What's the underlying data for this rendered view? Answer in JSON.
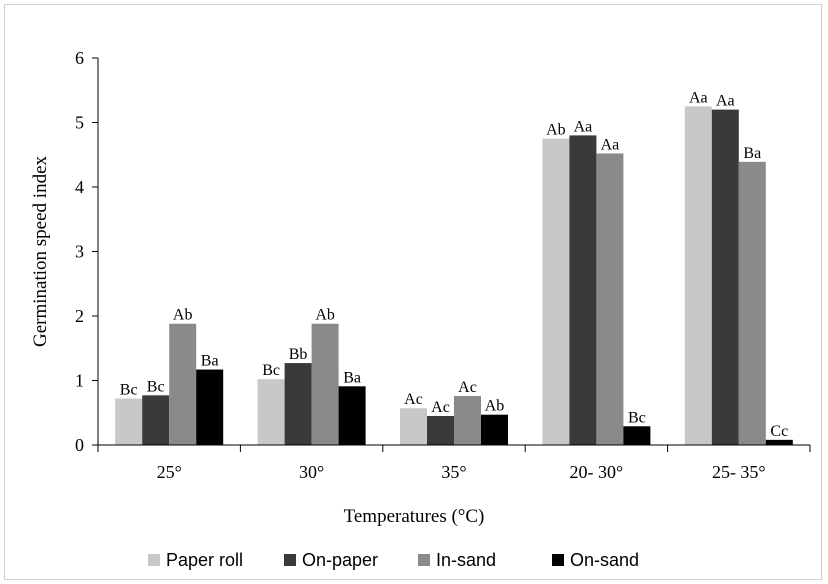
{
  "chart_data": {
    "type": "bar",
    "title": "",
    "xlabel": "Temperatures (°C)",
    "ylabel": "Germination speed index",
    "ylim": [
      0,
      6
    ],
    "yticks": [
      "0",
      "1",
      "2",
      "3",
      "4",
      "5",
      "6"
    ],
    "grid": false,
    "legend_position": "bottom",
    "categories": [
      "25°",
      "30°",
      "35°",
      "20- 30°",
      "25- 35°"
    ],
    "series": [
      {
        "name": "Paper roll",
        "color": "#c8c8c8",
        "values": [
          0.72,
          1.02,
          0.57,
          4.75,
          5.25
        ],
        "labels": [
          "Bc",
          "Bc",
          "Ac",
          "Ab",
          "Aa"
        ]
      },
      {
        "name": "On-paper",
        "color": "#3a3a3a",
        "values": [
          0.77,
          1.27,
          0.45,
          4.8,
          5.2
        ],
        "labels": [
          "Bc",
          "Bb",
          "Ac",
          "Aa",
          "Aa"
        ]
      },
      {
        "name": "In-sand",
        "color": "#8a8a8a",
        "values": [
          1.88,
          1.88,
          0.76,
          4.52,
          4.39
        ],
        "labels": [
          "Ab",
          "Ab",
          "Ac",
          "Aa",
          "Ba"
        ]
      },
      {
        "name": "On-sand",
        "color": "#000000",
        "values": [
          1.17,
          0.91,
          0.47,
          0.29,
          0.08
        ],
        "labels": [
          "Ba",
          "Ba",
          "Ab",
          "Bc",
          "Cc"
        ]
      }
    ]
  }
}
